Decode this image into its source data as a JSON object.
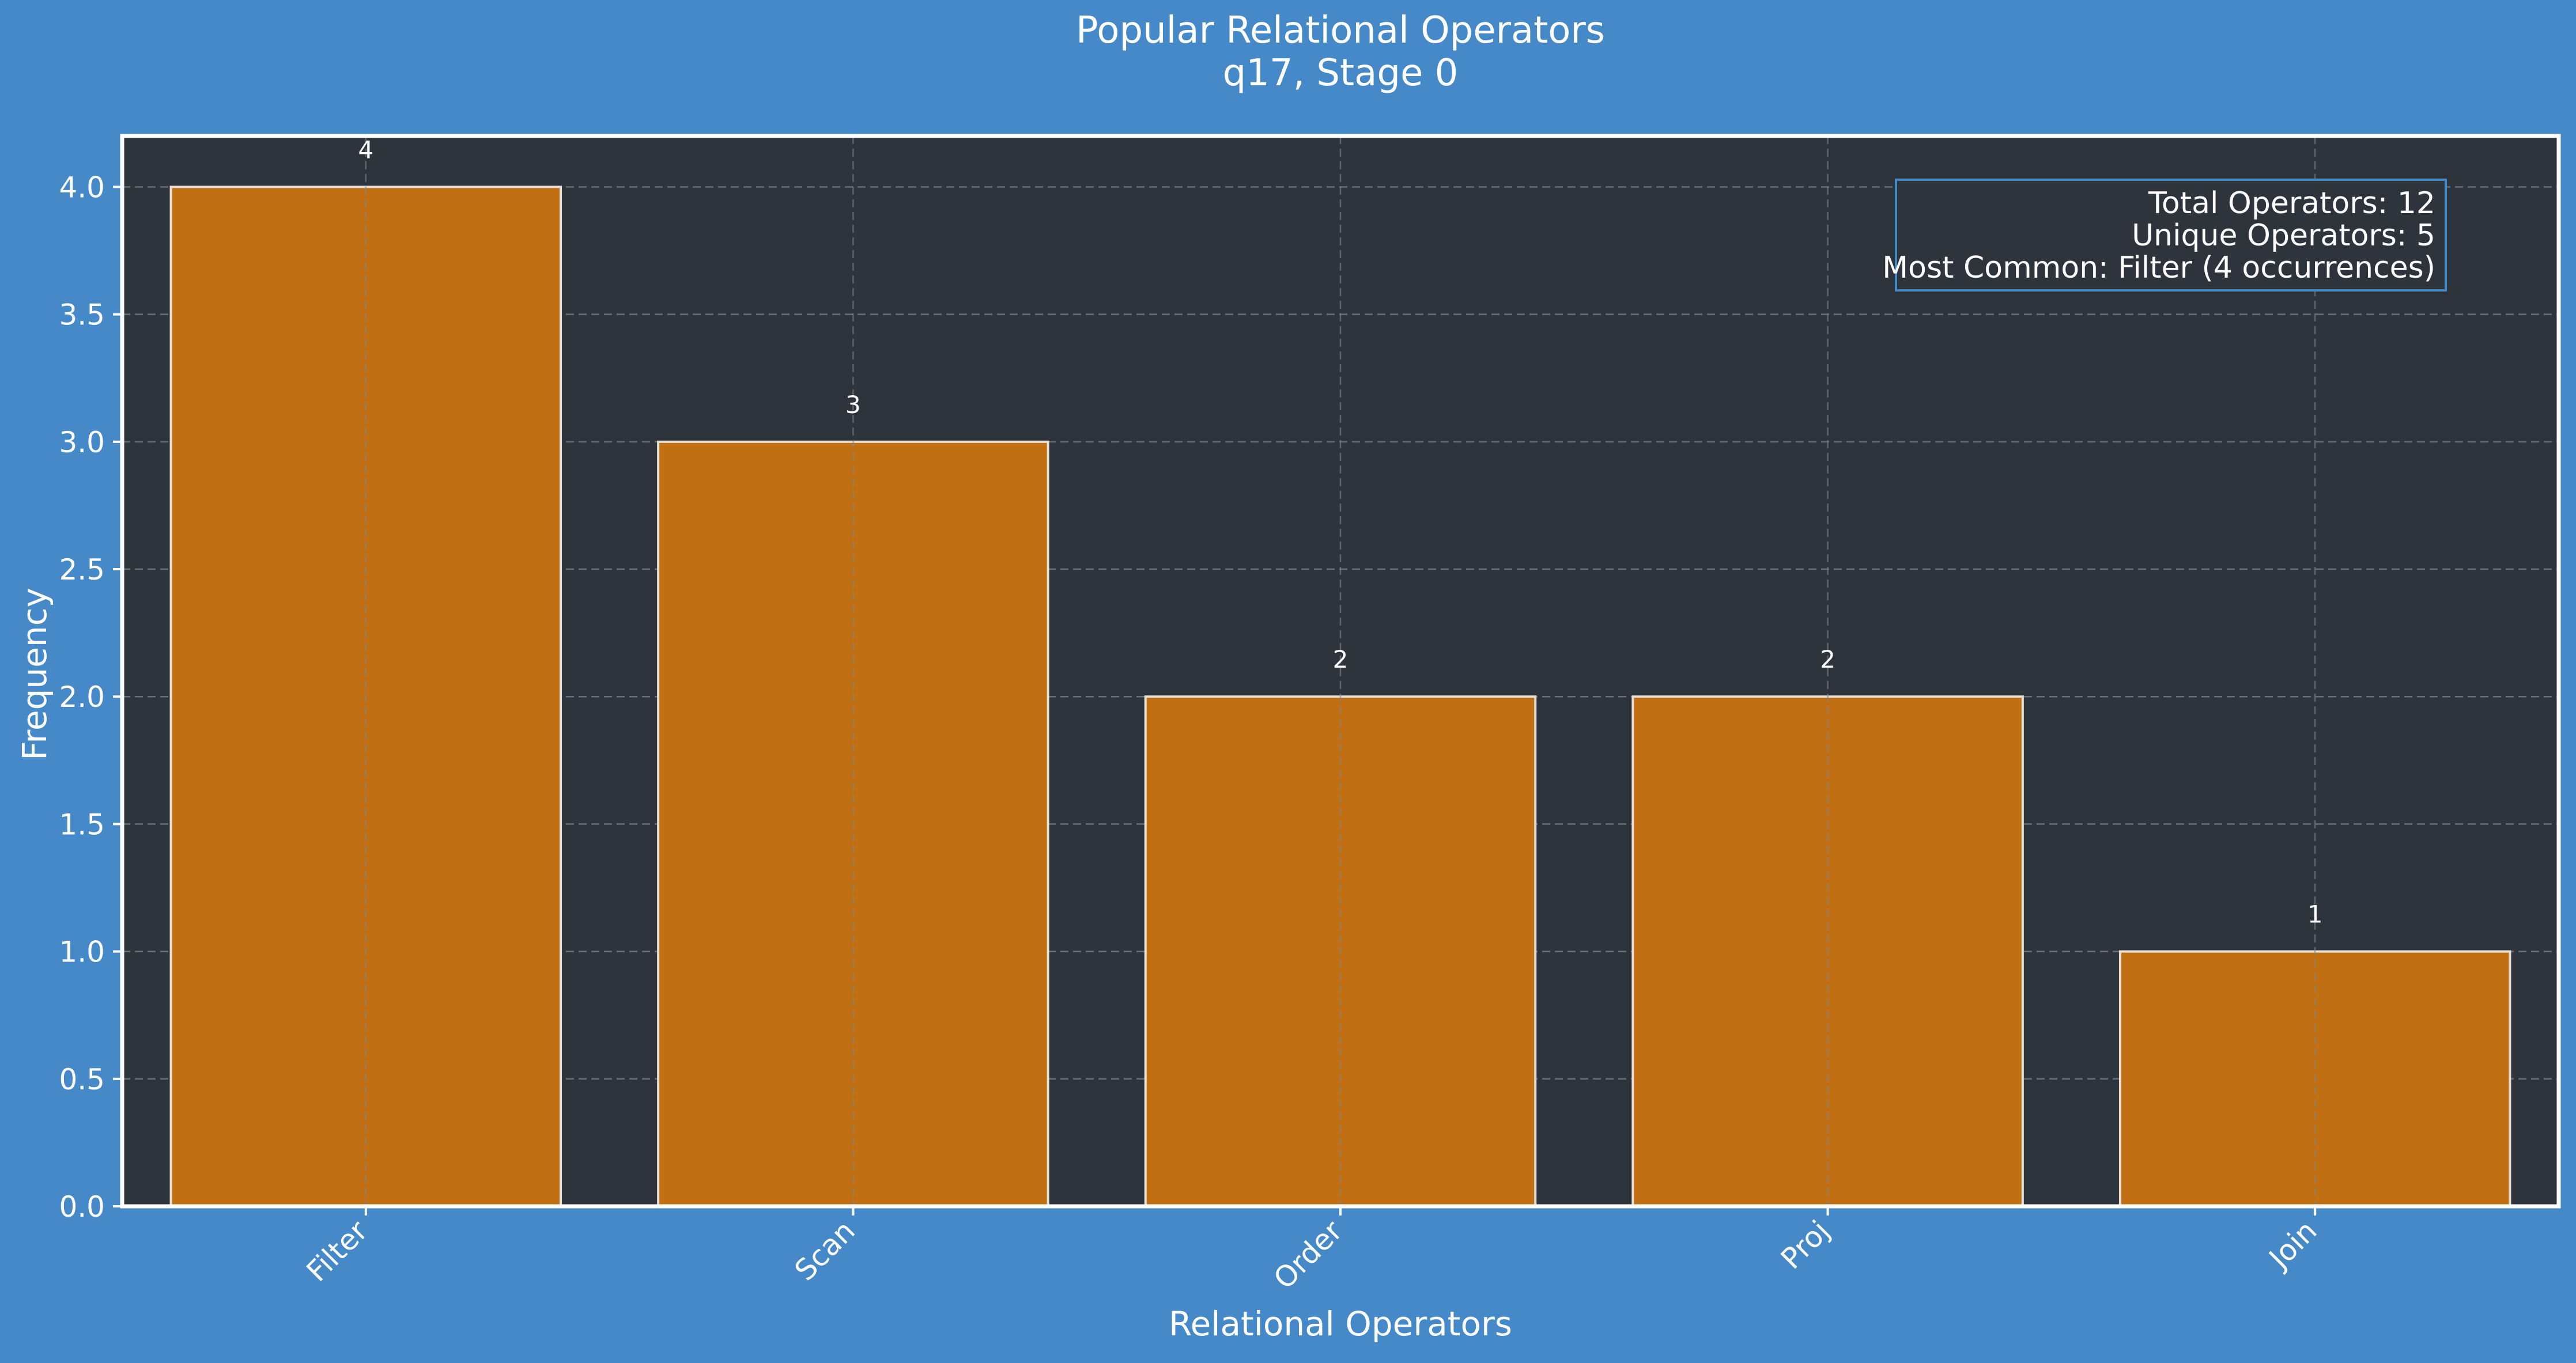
{
  "colors": {
    "page_background": "#4689c8",
    "plot_background": "#2e343c",
    "bar_fill": "#c07012",
    "bar_edge": "#e8e0d6",
    "text": "#ffffff",
    "grid": "#7d8590",
    "stats_box_border": "#4689c8"
  },
  "chart_data": {
    "type": "bar",
    "title": "Popular Relational Operators",
    "subtitle": "q17, Stage 0",
    "xlabel": "Relational Operators",
    "ylabel": "Frequency",
    "categories": [
      "Filter",
      "Scan",
      "Order",
      "Proj",
      "Join"
    ],
    "values": [
      4,
      3,
      2,
      2,
      1
    ],
    "data_labels": [
      "4",
      "3",
      "2",
      "2",
      "1"
    ],
    "ylim": [
      0,
      4.2
    ],
    "yticks": [
      "0.0",
      "0.5",
      "1.0",
      "1.5",
      "2.0",
      "2.5",
      "3.0",
      "3.5",
      "4.0"
    ],
    "grid": true,
    "tick_label_rotation": "45 degrees",
    "stats_box": {
      "placement": "top-right",
      "lines": [
        "Total Operators: 12",
        "Unique Operators: 5",
        "Most Common: Filter (4 occurrences)"
      ]
    }
  }
}
